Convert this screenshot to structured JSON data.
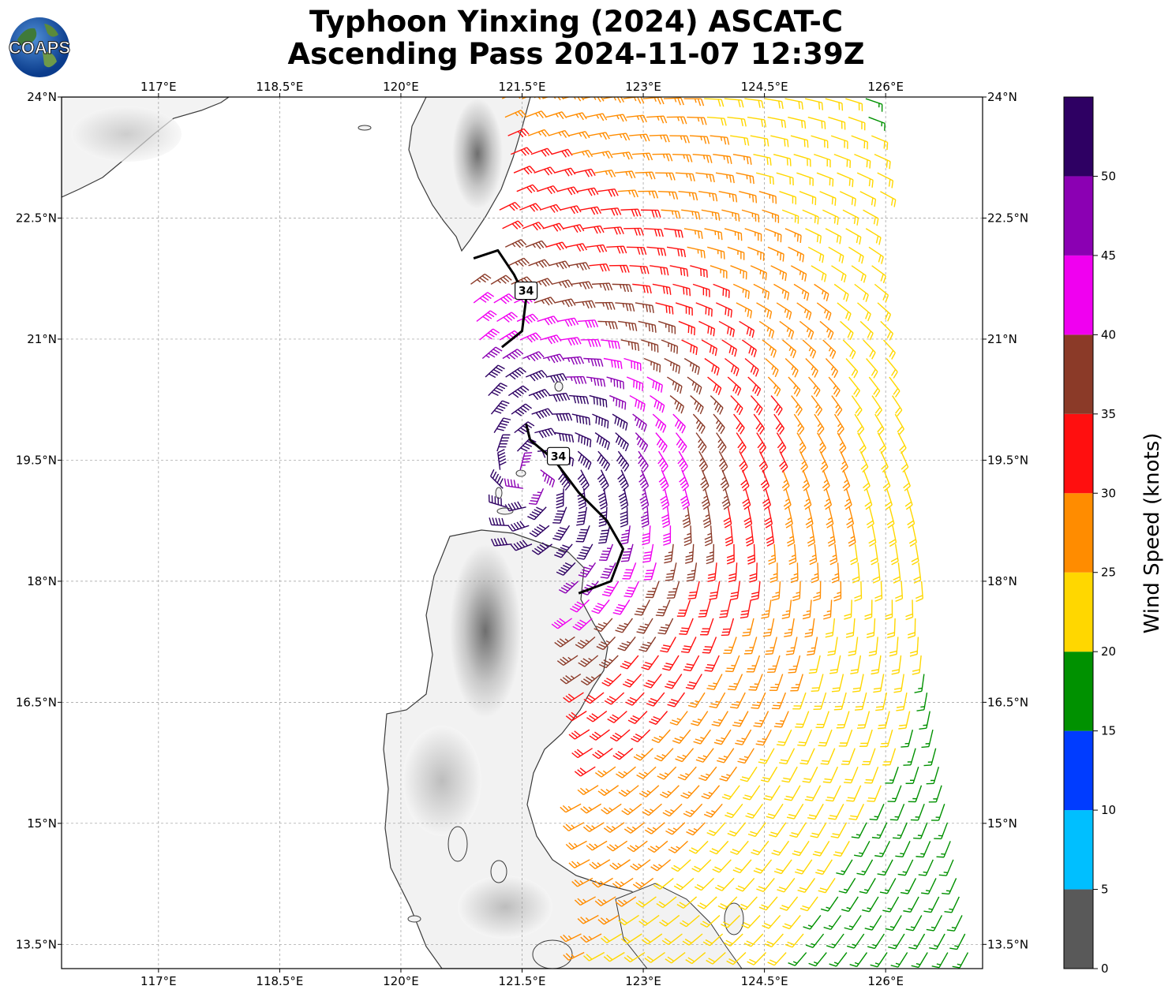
{
  "title_line1": "Typhoon Yinxing (2024) ASCAT-C",
  "title_line2": "Ascending Pass 2024-11-07 12:39Z",
  "logo_text": "COAPS",
  "map": {
    "lon_range": [
      115.8,
      127.2
    ],
    "lat_range": [
      13.2,
      24.0
    ],
    "lon_ticks": [
      {
        "value": 117.0,
        "label": "117°E"
      },
      {
        "value": 118.5,
        "label": "118.5°E"
      },
      {
        "value": 120.0,
        "label": "120°E"
      },
      {
        "value": 121.5,
        "label": "121.5°E"
      },
      {
        "value": 123.0,
        "label": "123°E"
      },
      {
        "value": 124.5,
        "label": "124.5°E"
      },
      {
        "value": 126.0,
        "label": "126°E"
      }
    ],
    "lat_ticks": [
      {
        "value": 24.0,
        "label": "24°N"
      },
      {
        "value": 22.5,
        "label": "22.5°N"
      },
      {
        "value": 21.0,
        "label": "21°N"
      },
      {
        "value": 19.5,
        "label": "19.5°N"
      },
      {
        "value": 18.0,
        "label": "18°N"
      },
      {
        "value": 16.5,
        "label": "16.5°N"
      },
      {
        "value": 15.0,
        "label": "15°N"
      },
      {
        "value": 13.5,
        "label": "13.5°N"
      }
    ],
    "gridlines": true,
    "storm_center": {
      "lon": 121.6,
      "lat": 19.3
    },
    "contour_34": {
      "label": "34",
      "segments": [
        [
          [
            120.9,
            22.0
          ],
          [
            121.2,
            22.1
          ],
          [
            121.4,
            21.8
          ],
          [
            121.55,
            21.5
          ],
          [
            121.5,
            21.1
          ],
          [
            121.25,
            20.9
          ]
        ],
        [
          [
            121.55,
            19.95
          ],
          [
            121.6,
            19.75
          ],
          [
            121.9,
            19.5
          ],
          [
            122.2,
            19.1
          ],
          [
            122.55,
            18.75
          ],
          [
            122.75,
            18.4
          ],
          [
            122.6,
            18.0
          ],
          [
            122.2,
            17.85
          ]
        ]
      ],
      "label_positions": [
        [
          121.55,
          21.6
        ],
        [
          121.95,
          19.55
        ]
      ]
    }
  },
  "colorbar": {
    "label": "Wind Speed (knots)",
    "bounds": [
      0,
      5,
      10,
      15,
      20,
      25,
      30,
      35,
      40,
      45,
      50,
      55
    ],
    "tick_labels": [
      "0",
      "5",
      "10",
      "15",
      "20",
      "25",
      "30",
      "35",
      "40",
      "45",
      "50"
    ],
    "colors": [
      "#595959",
      "#00bfff",
      "#003cff",
      "#009100",
      "#ffd700",
      "#ff8c00",
      "#ff0f0f",
      "#8b3a28",
      "#f000f0",
      "#8b00b3",
      "#2e0063"
    ]
  }
}
